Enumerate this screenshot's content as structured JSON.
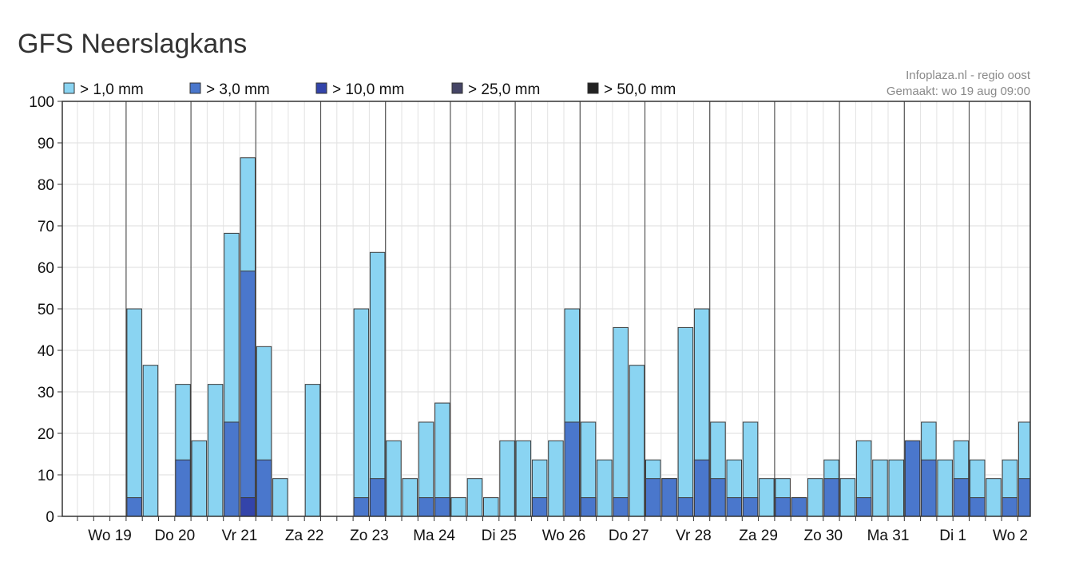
{
  "page": {
    "title": "GFS Neerslagkans"
  },
  "chart_data": {
    "type": "bar",
    "title": "",
    "source": [
      "Infoplaza.nl - regio oost",
      "Gemaakt: wo 19 aug 09:00"
    ],
    "ylim": [
      0,
      100
    ],
    "yticks": [
      0,
      10,
      20,
      30,
      40,
      50,
      60,
      70,
      80,
      90,
      100
    ],
    "grid": true,
    "legend_position": "top-left",
    "bar_layout": "overlapping (higher thresholds drawn in front)",
    "legend": [
      {
        "label": "> 1,0 mm",
        "color": "#8ad4f2"
      },
      {
        "label": "> 3,0 mm",
        "color": "#4a77cc"
      },
      {
        "label": "> 10,0 mm",
        "color": "#3344aa"
      },
      {
        "label": "> 25,0 mm",
        "color": "#454566"
      },
      {
        "label": "> 50,0 mm",
        "color": "#222222"
      }
    ],
    "day_labels": [
      "Wo 19",
      "Do 20",
      "Vr 21",
      "Za 22",
      "Zo 23",
      "Ma 24",
      "Di 25",
      "Wo 26",
      "Do 27",
      "Vr 28",
      "Za 29",
      "Zo 30",
      "Ma 31",
      "Di 1",
      "Wo 2"
    ],
    "series": [
      {
        "name": "> 1,0 mm",
        "values": [
          0,
          0,
          0,
          50,
          36.4,
          0,
          31.8,
          18.2,
          31.8,
          68.2,
          86.4,
          40.9,
          9.1,
          0,
          31.8,
          0,
          0,
          50,
          63.6,
          18.2,
          9.1,
          22.7,
          27.3,
          4.5,
          9.1,
          4.5,
          18.2,
          18.2,
          13.6,
          18.2,
          50,
          22.7,
          13.6,
          45.5,
          36.4,
          13.6,
          9.1,
          45.5,
          50,
          22.7,
          13.6,
          22.7,
          9.1,
          9.1,
          4.5,
          9.1,
          13.6,
          9.1,
          18.2,
          13.6,
          13.6,
          18.2,
          22.7,
          13.6,
          18.2,
          13.6,
          9.1,
          13.6,
          22.7
        ]
      },
      {
        "name": "> 3,0 mm",
        "values": [
          0,
          0,
          0,
          4.5,
          0,
          0,
          13.6,
          0,
          0,
          22.7,
          59.1,
          13.6,
          0,
          0,
          0,
          0,
          0,
          4.5,
          9.1,
          0,
          0,
          4.5,
          4.5,
          0,
          0,
          0,
          0,
          0,
          4.5,
          0,
          22.7,
          4.5,
          0,
          4.5,
          0,
          9.1,
          9.1,
          4.5,
          13.6,
          9.1,
          4.5,
          4.5,
          0,
          4.5,
          4.5,
          0,
          9.1,
          0,
          4.5,
          0,
          0,
          18.2,
          13.6,
          0,
          9.1,
          4.5,
          0,
          4.5,
          9.1
        ]
      },
      {
        "name": "> 10,0 mm",
        "values": [
          0,
          0,
          0,
          0,
          0,
          0,
          0,
          0,
          0,
          0,
          4.5,
          0,
          0,
          0,
          0,
          0,
          0,
          0,
          0,
          0,
          0,
          0,
          0,
          0,
          0,
          0,
          0,
          0,
          0,
          0,
          0,
          0,
          0,
          0,
          0,
          0,
          0,
          0,
          0,
          0,
          0,
          0,
          0,
          0,
          0,
          0,
          0,
          0,
          0,
          0,
          0,
          0,
          0,
          0,
          0,
          0,
          0,
          0,
          0
        ]
      },
      {
        "name": "> 25,0 mm",
        "values": [
          0,
          0,
          0,
          0,
          0,
          0,
          0,
          0,
          0,
          0,
          0,
          0,
          0,
          0,
          0,
          0,
          0,
          0,
          0,
          0,
          0,
          0,
          0,
          0,
          0,
          0,
          0,
          0,
          0,
          0,
          0,
          0,
          0,
          0,
          0,
          0,
          0,
          0,
          0,
          0,
          0,
          0,
          0,
          0,
          0,
          0,
          0,
          0,
          0,
          0,
          0,
          0,
          0,
          0,
          0,
          0,
          0,
          0,
          0
        ]
      },
      {
        "name": "> 50,0 mm",
        "values": [
          0,
          0,
          0,
          0,
          0,
          0,
          0,
          0,
          0,
          0,
          0,
          0,
          0,
          0,
          0,
          0,
          0,
          0,
          0,
          0,
          0,
          0,
          0,
          0,
          0,
          0,
          0,
          0,
          0,
          0,
          0,
          0,
          0,
          0,
          0,
          0,
          0,
          0,
          0,
          0,
          0,
          0,
          0,
          0,
          0,
          0,
          0,
          0,
          0,
          0,
          0,
          0,
          0,
          0,
          0,
          0,
          0,
          0,
          0
        ]
      }
    ]
  }
}
